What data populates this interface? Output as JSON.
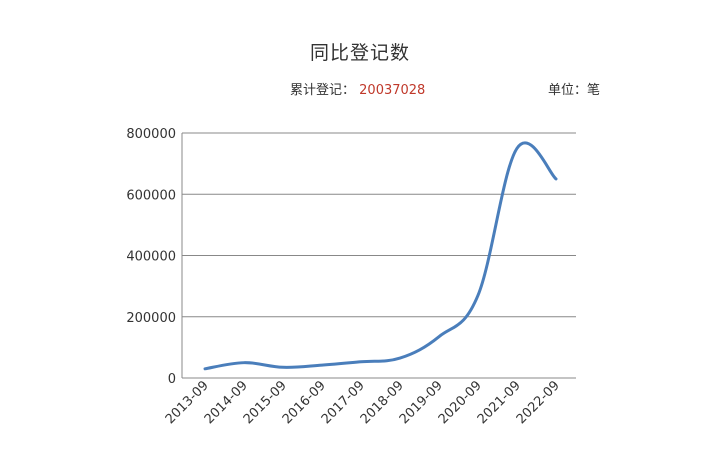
{
  "header": {
    "title": "同比登记数",
    "total_label": "累计登记：",
    "total_value": "20037028",
    "unit_label": "单位：笔"
  },
  "colors": {
    "line": "#4a7ebb",
    "grid": "#888888",
    "highlight": "#c0392b"
  },
  "chart_data": {
    "type": "line",
    "title": "同比登记数",
    "xlabel": "",
    "ylabel": "",
    "categories": [
      "2013-09",
      "2014-09",
      "2015-09",
      "2016-09",
      "2017-09",
      "2018-09",
      "2019-09",
      "2020-09",
      "2021-09",
      "2022-09"
    ],
    "series": [
      {
        "values": [
          30000,
          50000,
          35000,
          42000,
          53000,
          65000,
          135000,
          270000,
          750000,
          650000
        ]
      }
    ],
    "ylim": [
      0,
      800000
    ],
    "yticks": [
      0,
      200000,
      400000,
      600000,
      800000
    ],
    "grid": true,
    "legend": "none"
  }
}
